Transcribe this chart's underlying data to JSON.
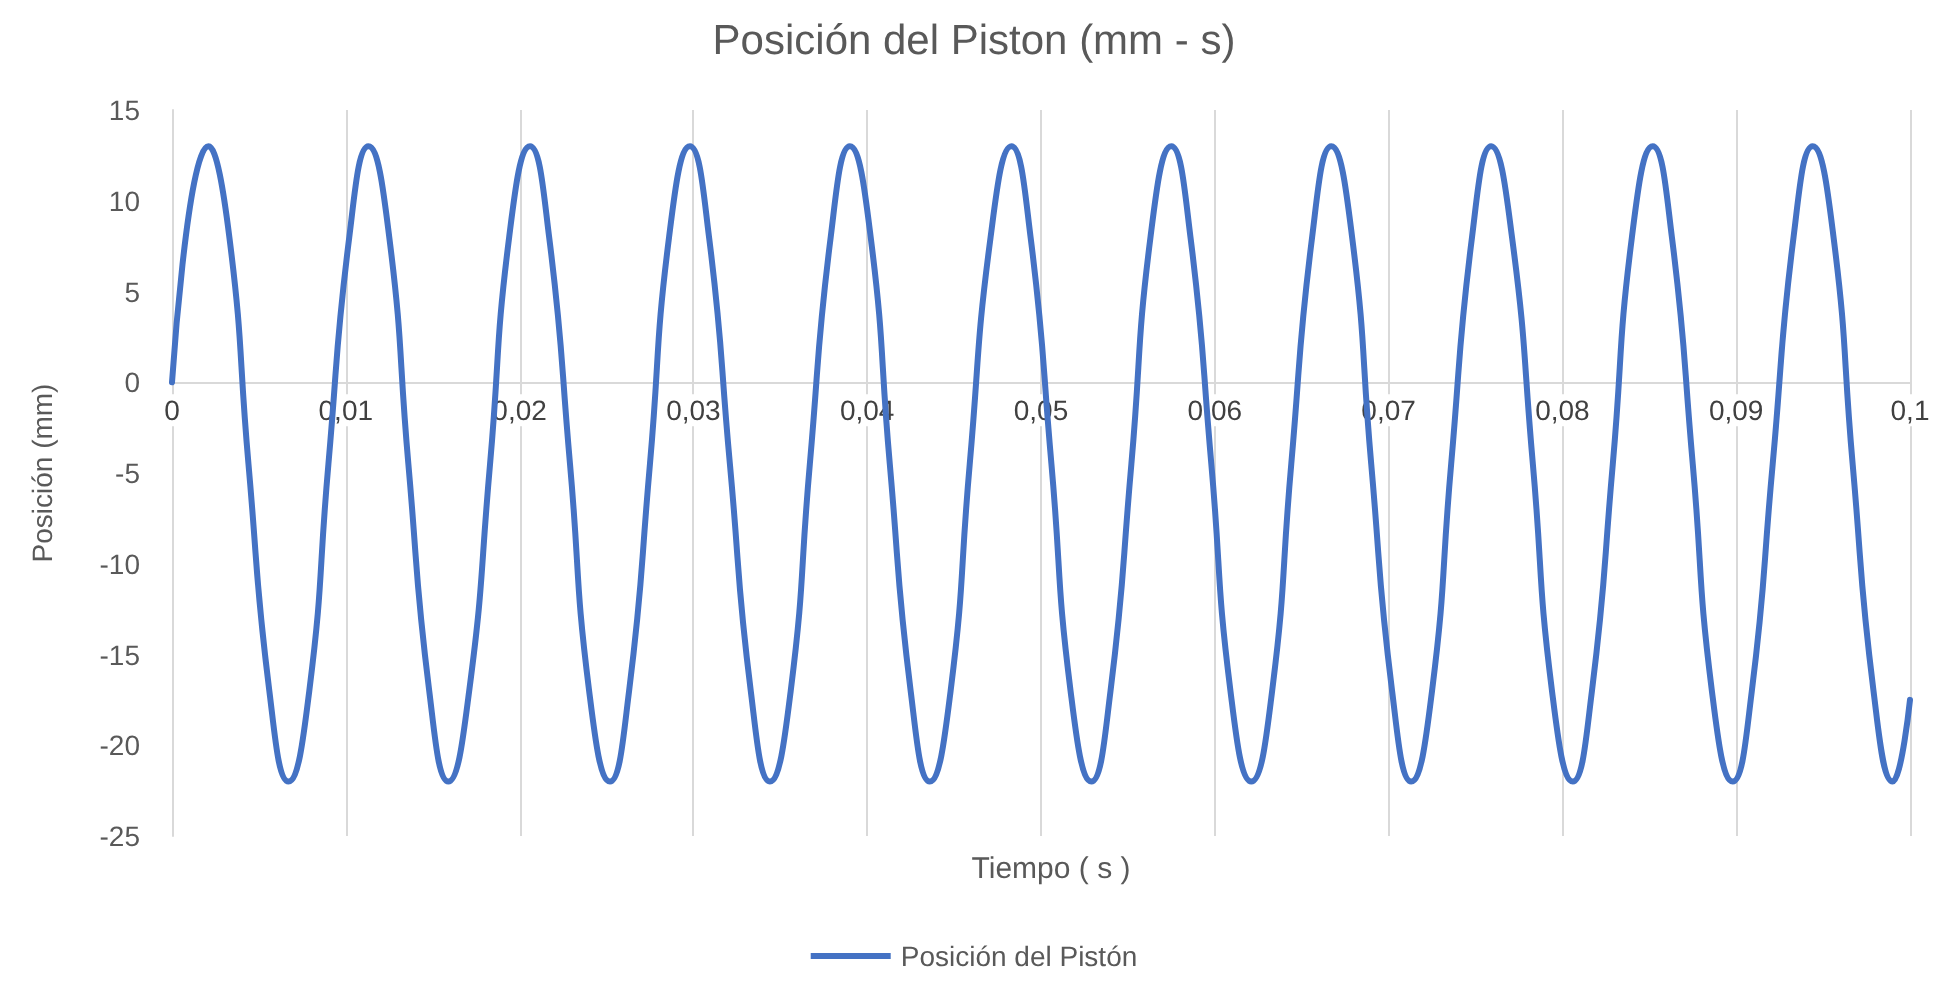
{
  "chart_data": {
    "type": "line",
    "title": "Posición del Piston (mm - s)",
    "xlabel": "Tiempo ( s )",
    "ylabel": "Posición (mm)",
    "xlim": [
      0,
      0.1
    ],
    "xticks": [
      0,
      {
        "value": 0.01,
        "label": "0,01"
      },
      {
        "value": 0.02,
        "label": "0,02"
      },
      {
        "value": 0.03,
        "label": "0,03"
      },
      {
        "value": 0.04,
        "label": "0,04"
      },
      {
        "value": 0.05,
        "label": "0,05"
      },
      {
        "value": 0.06,
        "label": "0,06"
      },
      {
        "value": 0.07,
        "label": "0,07"
      },
      {
        "value": 0.08,
        "label": "0,08"
      },
      {
        "value": 0.09,
        "label": "0,09"
      },
      {
        "value": 0.1,
        "label": "0,1"
      }
    ],
    "ylim": [
      -25,
      15
    ],
    "yticks": [
      -25,
      -20,
      -15,
      -10,
      -5,
      0,
      5,
      10,
      15
    ],
    "grid": "x",
    "legend": "bottom",
    "marker": "none",
    "line_style": "solid",
    "series": [
      {
        "name": "Posición del Pistón",
        "color": "#4472c4",
        "x": [
          0,
          0.0021,
          0.0033,
          0.0044,
          0.0056,
          0.0067,
          0.0079,
          0.009,
          0.0102,
          0.0113,
          0.0125,
          0.0136,
          0.0148,
          0.0159,
          0.0171,
          0.0183,
          0.0194,
          0.0206,
          0.0217,
          0.0229,
          0.024,
          0.0252,
          0.0263,
          0.0275,
          0.0286,
          0.0298,
          0.0309,
          0.0321,
          0.0333,
          0.0344,
          0.0356,
          0.0367,
          0.0379,
          0.039,
          0.0402,
          0.0413,
          0.0425,
          0.0436,
          0.0448,
          0.0459,
          0.0471,
          0.0483,
          0.0494,
          0.0506,
          0.0517,
          0.0529,
          0.054,
          0.0552,
          0.0563,
          0.0575,
          0.0586,
          0.0598,
          0.0609,
          0.0621,
          0.0633,
          0.0644,
          0.0656,
          0.0667,
          0.0679,
          0.069,
          0.0702,
          0.0713,
          0.0725,
          0.0736,
          0.0748,
          0.0759,
          0.0771,
          0.0783,
          0.0794,
          0.0806,
          0.0817,
          0.0829,
          0.084,
          0.0852,
          0.0863,
          0.0875,
          0.0886,
          0.0898,
          0.0909,
          0.0921,
          0.0933,
          0.0944,
          0.0956,
          0.0967,
          0.0979,
          0.099,
          0.1
        ],
        "values": [
          0,
          13,
          8,
          -4.5,
          -17,
          -22,
          -17,
          -4.5,
          8,
          13,
          8,
          -4.5,
          -17,
          -22,
          -17,
          -4.5,
          8,
          13,
          8,
          -4.5,
          -17,
          -22,
          -17,
          -4.5,
          8,
          13,
          8,
          -4.5,
          -17,
          -22,
          -17,
          -4.5,
          8,
          13,
          8,
          -4.5,
          -17,
          -22,
          -17,
          -4.5,
          8,
          13,
          8,
          -4.5,
          -17,
          -22,
          -17,
          -4.5,
          8,
          13,
          8,
          -4.5,
          -17,
          -22,
          -17,
          -4.5,
          8,
          13,
          8,
          -4.5,
          -17,
          -22,
          -17,
          -4.5,
          8,
          13,
          8,
          -4.5,
          -17,
          -22,
          -17,
          -4.5,
          8,
          13,
          8,
          -4.5,
          -17,
          -22,
          -17,
          -4.5,
          8,
          13,
          8,
          -4.5,
          -17,
          -22,
          -17.5
        ]
      }
    ]
  }
}
